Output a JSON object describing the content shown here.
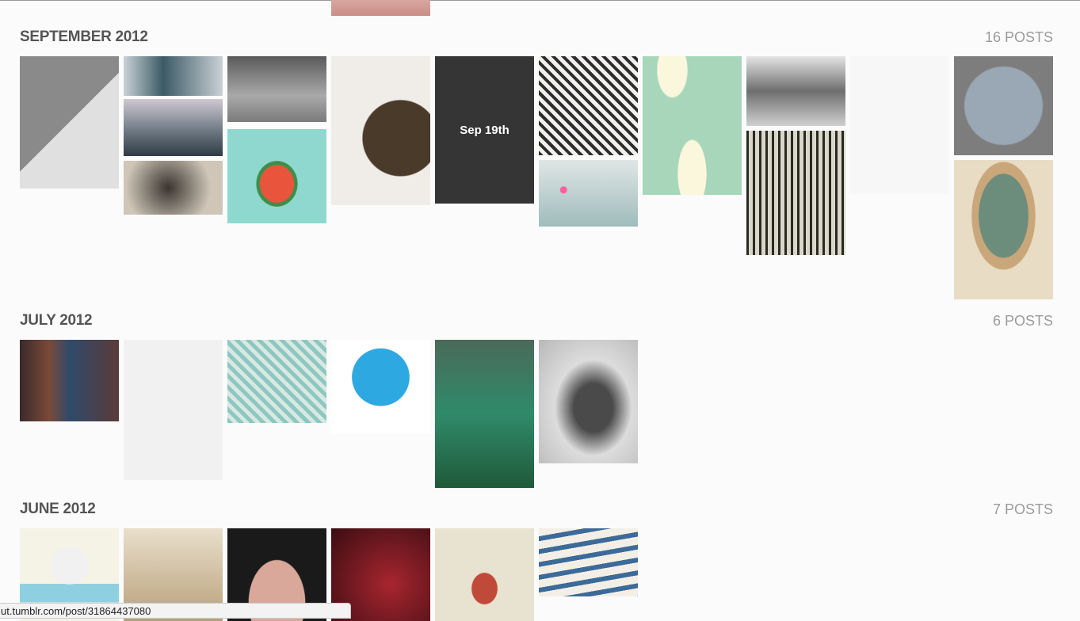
{
  "sections": [
    {
      "title": "SEPTEMBER 2012",
      "count": "16 POSTS",
      "hover_label": "Sep 19th"
    },
    {
      "title": "JULY 2012",
      "count": "6 POSTS"
    },
    {
      "title": "JUNE 2012",
      "count": "7 POSTS"
    }
  ],
  "status_bar": {
    "url": "ut.tumblr.com/post/31864437080"
  }
}
